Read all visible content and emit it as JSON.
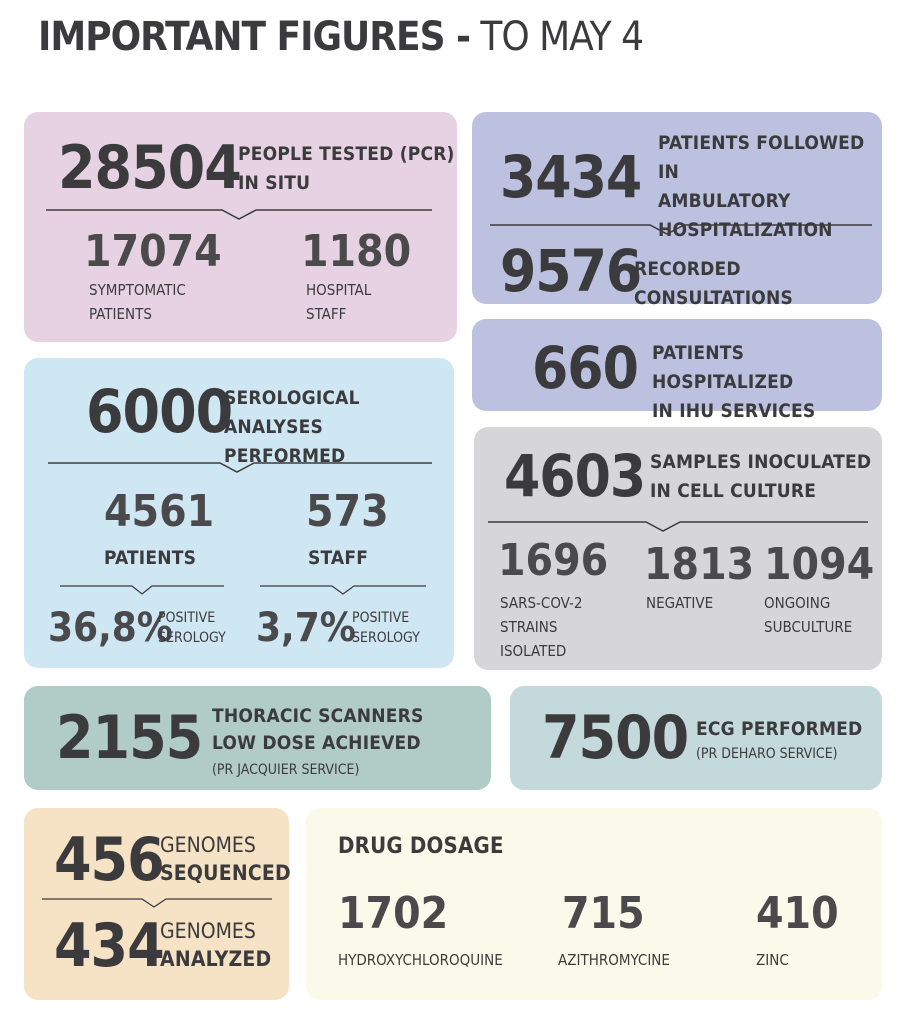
{
  "title": {
    "bold": "IMPORTANT FIGURES -",
    "light": "TO MAY 4"
  },
  "pcr": {
    "value": "28504",
    "label": "PEOPLE TESTED (PCR)\nIN SITU",
    "symptomatic": {
      "value": "17074",
      "label": "SYMPTOMATIC\nPATIENTS"
    },
    "hospital": {
      "value": "1180",
      "label": "HOSPITAL\nSTAFF"
    }
  },
  "ambulatory": {
    "value": "3434",
    "label": "PATIENTS FOLLOWED IN\nAMBULATORY\nHOSPITALIZATION",
    "consultations": {
      "value": "9576",
      "label": "RECORDED CONSULTATIONS"
    }
  },
  "ihu": {
    "value": "660",
    "label": "PATIENTS HOSPITALIZED\nIN IHU SERVICES"
  },
  "serology": {
    "value": "6000",
    "label": "SEROLOGICAL ANALYSES\nPERFORMED",
    "patients": {
      "value": "4561",
      "label": "PATIENTS",
      "percent": "36,8%",
      "percent_label": "POSITIVE\nSEROLOGY"
    },
    "staff": {
      "value": "573",
      "label": "STAFF",
      "percent": "3,7%",
      "percent_label": "POSITIVE\nSEROLOGY"
    }
  },
  "culture": {
    "value": "4603",
    "label": "SAMPLES INOCULATED\nIN CELL CULTURE",
    "isolated": {
      "value": "1696",
      "label": "SARS-COV-2\nSTRAINS\nISOLATED"
    },
    "negative": {
      "value": "1813",
      "label": "NEGATIVE"
    },
    "ongoing": {
      "value": "1094",
      "label": "ONGOING\nSUBCULTURE"
    }
  },
  "scanners": {
    "value": "2155",
    "label": "THORACIC SCANNERS\nLOW DOSE ACHIEVED",
    "sub": "(PR JACQUIER SERVICE)"
  },
  "ecg": {
    "value": "7500",
    "label": "ECG PERFORMED",
    "sub": "(PR DEHARO SERVICE)"
  },
  "genomes": {
    "sequenced": {
      "value": "456",
      "label1": "GENOMES",
      "label2": "SEQUENCED"
    },
    "analyzed": {
      "value": "434",
      "label1": "GENOMES",
      "label2": "ANALYZED"
    }
  },
  "drugs": {
    "title": "DRUG DOSAGE",
    "items": [
      {
        "value": "1702",
        "label": "HYDROXYCHLOROQUINE"
      },
      {
        "value": "715",
        "label": "AZITHROMYCINE"
      },
      {
        "value": "410",
        "label": "ZINC"
      }
    ]
  },
  "colors": {
    "text": "#3b3b3d",
    "pink": "#e6d2e3",
    "lavender": "#bcc1e0",
    "blue": "#cfe6f3",
    "grey": "#d6d6d8",
    "teal": "#b1cbc7",
    "teal_light": "#c4d9db",
    "peach": "#f6e2c4",
    "cream": "#fafaea"
  }
}
